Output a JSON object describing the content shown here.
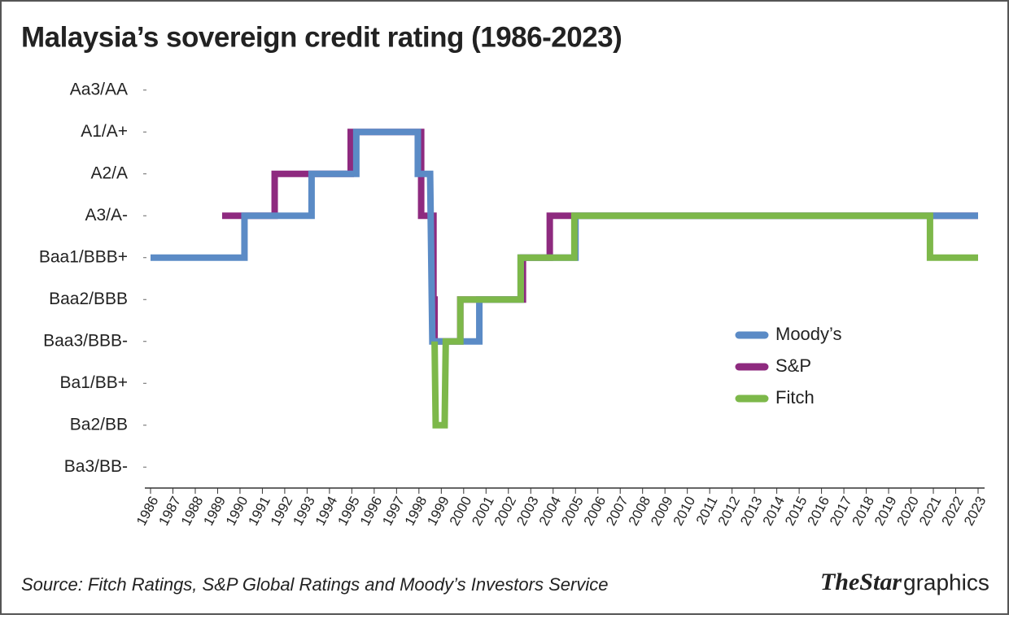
{
  "chart_data": {
    "type": "line",
    "title": "Malaysia’s sovereign credit rating (1986-2023)",
    "source": "Source: Fitch Ratings, S&P Global Ratings and Moody’s Investors Service",
    "logo": {
      "brand": "TheStar",
      "suffix": "graphics"
    },
    "xlim": [
      1986,
      2023
    ],
    "xticks": [
      1986,
      1987,
      1988,
      1989,
      1990,
      1991,
      1992,
      1993,
      1994,
      1995,
      1996,
      1997,
      1998,
      1999,
      2000,
      2001,
      2002,
      2003,
      2004,
      2005,
      2006,
      2007,
      2008,
      2009,
      2010,
      2011,
      2012,
      2013,
      2014,
      2015,
      2016,
      2017,
      2018,
      2019,
      2020,
      2021,
      2022,
      2023
    ],
    "ylim": [
      -0.5,
      9.5
    ],
    "yticks": [
      {
        "value": 0,
        "label": "Ba3/BB-"
      },
      {
        "value": 1,
        "label": "Ba2/BB"
      },
      {
        "value": 2,
        "label": "Ba1/BB+"
      },
      {
        "value": 3,
        "label": "Baa3/BBB-"
      },
      {
        "value": 4,
        "label": "Baa2/BBB"
      },
      {
        "value": 5,
        "label": "Baa1/BBB+"
      },
      {
        "value": 6,
        "label": "A3/A-"
      },
      {
        "value": 7,
        "label": "A2/A"
      },
      {
        "value": 8,
        "label": "A1/A+"
      },
      {
        "value": 9,
        "label": "Aa3/AA"
      }
    ],
    "legend": "right",
    "series": [
      {
        "name": "S&P",
        "color": "#8e2a7f",
        "x": [
          1989.2,
          1991.55,
          1991.55,
          1994.95,
          1994.95,
          1998.1,
          1998.1,
          1998.65,
          1998.65,
          1998.7,
          1998.7,
          1999.85,
          1999.85,
          2002.65,
          2002.65,
          2003.85,
          2003.85,
          2023
        ],
        "values": [
          6,
          6,
          7,
          7,
          8,
          8,
          6,
          6,
          4,
          4,
          3,
          3,
          4,
          4,
          5,
          5,
          6,
          6
        ]
      },
      {
        "name": "Moody’s",
        "color": "#5b8bc6",
        "x": [
          1986,
          1990.2,
          1990.2,
          1993.2,
          1993.2,
          1995.2,
          1995.2,
          1997.95,
          1997.95,
          1998.5,
          1998.6,
          2000.7,
          2000.7,
          2002.55,
          2002.55,
          2005.0,
          2005.0,
          2023
        ],
        "values": [
          5,
          5,
          6,
          6,
          7,
          7,
          8,
          8,
          7,
          7,
          3,
          3,
          4,
          4,
          5,
          5,
          6,
          6
        ]
      },
      {
        "name": "Fitch",
        "color": "#7db84a",
        "x": [
          1998.7,
          1998.75,
          1999.15,
          1999.2,
          1999.85,
          1999.85,
          2002.55,
          2002.55,
          2004.95,
          2004.95,
          2020.85,
          2020.85,
          2023
        ],
        "values": [
          3,
          1,
          1,
          3,
          3,
          4,
          4,
          5,
          5,
          6,
          6,
          5,
          5
        ]
      }
    ]
  }
}
